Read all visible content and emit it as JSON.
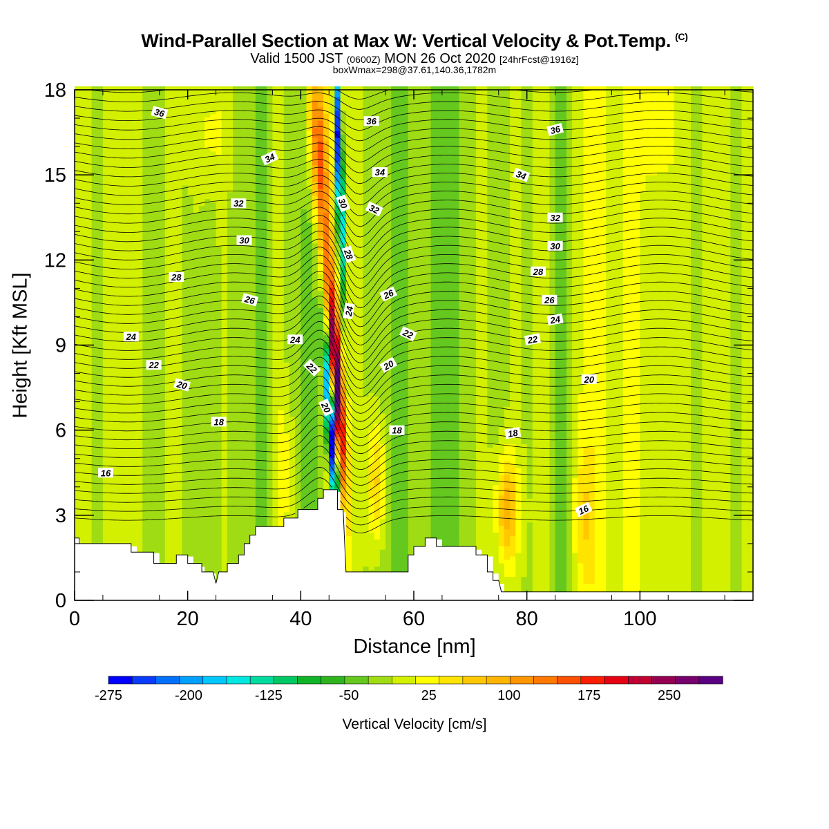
{
  "title": {
    "main": "Wind-Parallel Section at Max W: Vertical Velocity & Pot.Temp.",
    "copyright": "(C)",
    "valid_prefix": "Valid 1500 JST",
    "valid_utc": "(0600Z)",
    "valid_date": "MON 26 Oct 2020",
    "forecast": "[24hrFcst@1916z]",
    "box_info": "boxWmax=298@37.61,140.36,1782m"
  },
  "chart_data": {
    "type": "heatmap",
    "xlabel": "Distance [nm]",
    "ylabel": "Height [Kft MSL]",
    "xlim": [
      0,
      120
    ],
    "ylim": [
      0,
      18
    ],
    "x_ticks": [
      0,
      20,
      40,
      60,
      80,
      100
    ],
    "y_ticks": [
      0,
      3,
      6,
      9,
      12,
      15,
      18
    ],
    "colorbar": {
      "label": "Vertical Velocity [cm/s]",
      "tick_labels": [
        "-275",
        "-200",
        "-125",
        "-50",
        "25",
        "100",
        "175",
        "250"
      ],
      "tick_values": [
        -275,
        -200,
        -125,
        -50,
        25,
        100,
        175,
        250
      ],
      "range": [
        -275,
        300
      ],
      "colors": [
        "#0000ff",
        "#0a3cff",
        "#0070ff",
        "#00a0ff",
        "#00c8ff",
        "#00e8e0",
        "#00dca0",
        "#00c864",
        "#10b428",
        "#30b41e",
        "#64c81e",
        "#a0dc14",
        "#d2f000",
        "#ffff00",
        "#ffe400",
        "#ffc800",
        "#ffb400",
        "#ff9600",
        "#ff7800",
        "#ff5000",
        "#ff1e00",
        "#e60014",
        "#be0032",
        "#960050",
        "#78006e",
        "#5a0082"
      ]
    },
    "potential_temperature_contours": {
      "labels": [
        "16",
        "18",
        "20",
        "22",
        "24",
        "26",
        "28",
        "30",
        "32",
        "34",
        "36"
      ],
      "levels": [
        16,
        18,
        20,
        22,
        24,
        26,
        28,
        30,
        32,
        34,
        36
      ],
      "color": "#000000"
    },
    "features": {
      "max_updraft_cm_s": 298,
      "max_updraft_distance_nm": 47.5,
      "max_downdraft_distance_nm": 45.5,
      "terrain_peak_kft": 3.9,
      "terrain_peak_distance_nm": 46
    }
  }
}
